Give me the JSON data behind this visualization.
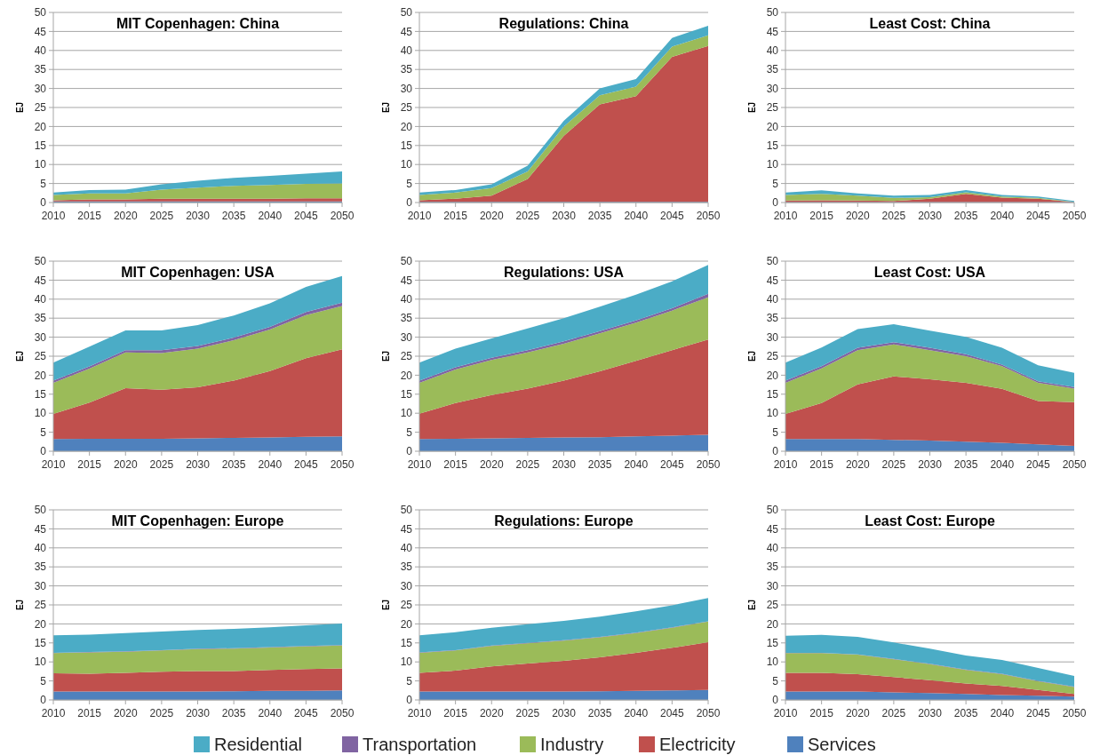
{
  "chart_data": [
    {
      "type": "area",
      "stacked": true,
      "title": "MIT Copenhagen: China",
      "ylabel": "EJ",
      "x": [
        2010,
        2015,
        2020,
        2025,
        2030,
        2035,
        2040,
        2045,
        2050
      ],
      "xlim": [
        2010,
        2050
      ],
      "xticks": [
        2010,
        2015,
        2020,
        2025,
        2030,
        2035,
        2040,
        2045,
        2050
      ],
      "ylim": [
        0,
        50
      ],
      "yticks": [
        0,
        5,
        10,
        15,
        20,
        25,
        30,
        35,
        40,
        45,
        50
      ],
      "grid": "y",
      "series": [
        {
          "color": "#4f81bd",
          "values": [
            0.3,
            0.3,
            0.3,
            0.3,
            0.3,
            0.3,
            0.3,
            0.3,
            0.3
          ]
        },
        {
          "color": "#c0504d",
          "values": [
            0.3,
            0.5,
            0.5,
            0.7,
            0.7,
            0.7,
            0.7,
            0.8,
            0.8
          ]
        },
        {
          "color": "#9bbb59",
          "values": [
            1.4,
            1.6,
            1.6,
            2.4,
            2.9,
            3.4,
            3.6,
            3.8,
            3.9
          ]
        },
        {
          "color": "#4bacc6",
          "values": [
            0.6,
            0.9,
            1.0,
            1.4,
            1.8,
            2.1,
            2.4,
            2.7,
            3.2
          ]
        }
      ]
    },
    {
      "type": "area",
      "stacked": true,
      "title": "Regulations: China",
      "ylabel": "EJ",
      "x": [
        2010,
        2015,
        2020,
        2025,
        2030,
        2035,
        2040,
        2045,
        2050
      ],
      "xlim": [
        2010,
        2050
      ],
      "xticks": [
        2010,
        2015,
        2020,
        2025,
        2030,
        2035,
        2040,
        2045,
        2050
      ],
      "ylim": [
        0,
        50
      ],
      "yticks": [
        0,
        5,
        10,
        15,
        20,
        25,
        30,
        35,
        40,
        45,
        50
      ],
      "grid": "y",
      "series": [
        {
          "color": "#4f81bd",
          "values": [
            0.2,
            0.2,
            0.2,
            0.2,
            0.2,
            0.2,
            0.2,
            0.2,
            0.2
          ]
        },
        {
          "color": "#c0504d",
          "values": [
            0.4,
            0.8,
            1.6,
            6.0,
            17.3,
            25.6,
            27.8,
            38.1,
            41.0
          ]
        },
        {
          "color": "#9bbb59",
          "values": [
            1.4,
            1.6,
            2.0,
            2.0,
            2.5,
            2.4,
            2.5,
            2.7,
            2.8
          ]
        },
        {
          "color": "#4bacc6",
          "values": [
            0.6,
            0.7,
            1.0,
            1.5,
            1.5,
            1.8,
            2.0,
            2.3,
            2.5
          ]
        }
      ]
    },
    {
      "type": "area",
      "stacked": true,
      "title": "Least Cost: China",
      "ylabel": "EJ",
      "x": [
        2010,
        2015,
        2020,
        2025,
        2030,
        2035,
        2040,
        2045,
        2050
      ],
      "xlim": [
        2010,
        2050
      ],
      "xticks": [
        2010,
        2015,
        2020,
        2025,
        2030,
        2035,
        2040,
        2045,
        2050
      ],
      "ylim": [
        0,
        50
      ],
      "yticks": [
        0,
        5,
        10,
        15,
        20,
        25,
        30,
        35,
        40,
        45,
        50
      ],
      "grid": "y",
      "series": [
        {
          "color": "#4f81bd",
          "values": [
            0.1,
            0.1,
            0.1,
            0.1,
            0.1,
            0.1,
            0.1,
            0.1,
            0.1
          ]
        },
        {
          "color": "#c0504d",
          "values": [
            0.4,
            0.5,
            0.4,
            0.3,
            0.9,
            2.2,
            1.2,
            0.9,
            0
          ]
        },
        {
          "color": "#9bbb59",
          "values": [
            1.5,
            1.7,
            1.3,
            0.8,
            0.4,
            0.4,
            0.3,
            0.2,
            0.1
          ]
        },
        {
          "color": "#4bacc6",
          "values": [
            0.6,
            0.9,
            0.6,
            0.6,
            0.6,
            0.6,
            0.4,
            0.4,
            0.2
          ]
        }
      ]
    },
    {
      "type": "area",
      "stacked": true,
      "title": "MIT Copenhagen: USA",
      "ylabel": "EJ",
      "x": [
        2010,
        2015,
        2020,
        2025,
        2030,
        2035,
        2040,
        2045,
        2050
      ],
      "xlim": [
        2010,
        2050
      ],
      "xticks": [
        2010,
        2015,
        2020,
        2025,
        2030,
        2035,
        2040,
        2045,
        2050
      ],
      "ylim": [
        0,
        50
      ],
      "yticks": [
        0,
        5,
        10,
        15,
        20,
        25,
        30,
        35,
        40,
        45,
        50
      ],
      "grid": "y",
      "series": [
        {
          "color": "#4f81bd",
          "values": [
            3.2,
            3.3,
            3.3,
            3.3,
            3.4,
            3.5,
            3.6,
            3.8,
            3.9
          ]
        },
        {
          "color": "#c0504d",
          "values": [
            6.6,
            9.5,
            13.3,
            12.9,
            13.4,
            15.1,
            17.5,
            20.7,
            22.9
          ]
        },
        {
          "color": "#9bbb59",
          "values": [
            8.2,
            8.9,
            9.4,
            9.6,
            10.2,
            10.6,
            10.9,
            11.3,
            11.4
          ]
        },
        {
          "color": "#8064a2",
          "values": [
            0.6,
            0.6,
            0.6,
            0.8,
            0.7,
            0.7,
            0.7,
            0.8,
            0.9
          ]
        },
        {
          "color": "#4bacc6",
          "values": [
            4.7,
            5.2,
            5.2,
            5.2,
            5.5,
            5.8,
            6.2,
            6.6,
            7.0
          ]
        }
      ]
    },
    {
      "type": "area",
      "stacked": true,
      "title": "Regulations: USA",
      "ylabel": "EJ",
      "x": [
        2010,
        2015,
        2020,
        2025,
        2030,
        2035,
        2040,
        2045,
        2050
      ],
      "xlim": [
        2010,
        2050
      ],
      "xticks": [
        2010,
        2015,
        2020,
        2025,
        2030,
        2035,
        2040,
        2045,
        2050
      ],
      "ylim": [
        0,
        50
      ],
      "yticks": [
        0,
        5,
        10,
        15,
        20,
        25,
        30,
        35,
        40,
        45,
        50
      ],
      "grid": "y",
      "series": [
        {
          "color": "#4f81bd",
          "values": [
            3.2,
            3.3,
            3.4,
            3.5,
            3.6,
            3.7,
            3.9,
            4.1,
            4.3
          ]
        },
        {
          "color": "#c0504d",
          "values": [
            6.7,
            9.4,
            11.4,
            13.0,
            15.0,
            17.3,
            19.9,
            22.5,
            25.1
          ]
        },
        {
          "color": "#9bbb59",
          "values": [
            8.1,
            8.8,
            9.2,
            9.5,
            9.7,
            10.0,
            10.0,
            10.4,
            11.1
          ]
        },
        {
          "color": "#8064a2",
          "values": [
            0.6,
            0.6,
            0.6,
            0.6,
            0.6,
            0.6,
            0.6,
            0.6,
            0.9
          ]
        },
        {
          "color": "#4bacc6",
          "values": [
            4.7,
            4.9,
            5.1,
            5.7,
            6.1,
            6.4,
            6.8,
            7.1,
            7.6
          ]
        }
      ]
    },
    {
      "type": "area",
      "stacked": true,
      "title": "Least Cost: USA",
      "ylabel": "EJ",
      "x": [
        2010,
        2015,
        2020,
        2025,
        2030,
        2035,
        2040,
        2045,
        2050
      ],
      "xlim": [
        2010,
        2050
      ],
      "xticks": [
        2010,
        2015,
        2020,
        2025,
        2030,
        2035,
        2040,
        2045,
        2050
      ],
      "ylim": [
        0,
        50
      ],
      "yticks": [
        0,
        5,
        10,
        15,
        20,
        25,
        30,
        35,
        40,
        45,
        50
      ],
      "grid": "y",
      "series": [
        {
          "color": "#4f81bd",
          "values": [
            3.2,
            3.2,
            3.2,
            3.0,
            2.8,
            2.5,
            2.2,
            1.8,
            1.4
          ]
        },
        {
          "color": "#c0504d",
          "values": [
            6.6,
            9.5,
            14.4,
            16.7,
            16.1,
            15.5,
            14.2,
            11.4,
            11.5
          ]
        },
        {
          "color": "#9bbb59",
          "values": [
            8.2,
            9.1,
            9.0,
            8.4,
            7.7,
            7.0,
            6.0,
            4.8,
            3.6
          ]
        },
        {
          "color": "#8064a2",
          "values": [
            0.6,
            0.6,
            0.6,
            0.6,
            0.6,
            0.5,
            0.4,
            0.4,
            0.4
          ]
        },
        {
          "color": "#4bacc6",
          "values": [
            4.7,
            4.9,
            4.9,
            4.7,
            4.5,
            4.6,
            4.4,
            4.2,
            3.7
          ]
        }
      ]
    },
    {
      "type": "area",
      "stacked": true,
      "title": "MIT Copenhagen: Europe",
      "ylabel": "EJ",
      "x": [
        2010,
        2015,
        2020,
        2025,
        2030,
        2035,
        2040,
        2045,
        2050
      ],
      "xlim": [
        2010,
        2050
      ],
      "xticks": [
        2010,
        2015,
        2020,
        2025,
        2030,
        2035,
        2040,
        2045,
        2050
      ],
      "ylim": [
        0,
        50
      ],
      "yticks": [
        0,
        5,
        10,
        15,
        20,
        25,
        30,
        35,
        40,
        45,
        50
      ],
      "grid": "y",
      "series": [
        {
          "color": "#4f81bd",
          "values": [
            2.2,
            2.2,
            2.2,
            2.2,
            2.2,
            2.3,
            2.4,
            2.4,
            2.5
          ]
        },
        {
          "color": "#c0504d",
          "values": [
            4.8,
            4.7,
            4.9,
            5.2,
            5.4,
            5.3,
            5.5,
            5.7,
            5.8
          ]
        },
        {
          "color": "#9bbb59",
          "values": [
            5.3,
            5.6,
            5.6,
            5.6,
            5.8,
            5.9,
            5.9,
            6.0,
            6.0
          ]
        },
        {
          "color": "#8064a2",
          "values": [
            0.1,
            0.1,
            0.1,
            0.1,
            0.1,
            0.1,
            0.1,
            0.1,
            0.1
          ]
        },
        {
          "color": "#4bacc6",
          "values": [
            4.6,
            4.6,
            4.8,
            4.9,
            4.9,
            5.1,
            5.2,
            5.4,
            5.7
          ]
        }
      ]
    },
    {
      "type": "area",
      "stacked": true,
      "title": "Regulations: Europe",
      "ylabel": "EJ",
      "x": [
        2010,
        2015,
        2020,
        2025,
        2030,
        2035,
        2040,
        2045,
        2050
      ],
      "xlim": [
        2010,
        2050
      ],
      "xticks": [
        2010,
        2015,
        2020,
        2025,
        2030,
        2035,
        2040,
        2045,
        2050
      ],
      "ylim": [
        0,
        50
      ],
      "yticks": [
        0,
        5,
        10,
        15,
        20,
        25,
        30,
        35,
        40,
        45,
        50
      ],
      "grid": "y",
      "series": [
        {
          "color": "#4f81bd",
          "values": [
            2.2,
            2.2,
            2.2,
            2.2,
            2.2,
            2.3,
            2.4,
            2.5,
            2.6
          ]
        },
        {
          "color": "#c0504d",
          "values": [
            4.9,
            5.5,
            6.6,
            7.4,
            8.1,
            8.9,
            10.0,
            11.2,
            12.6
          ]
        },
        {
          "color": "#9bbb59",
          "values": [
            5.3,
            5.3,
            5.4,
            5.3,
            5.3,
            5.3,
            5.2,
            5.3,
            5.4
          ]
        },
        {
          "color": "#8064a2",
          "values": [
            0.1,
            0.1,
            0.1,
            0.1,
            0.1,
            0.1,
            0.1,
            0.1,
            0.1
          ]
        },
        {
          "color": "#4bacc6",
          "values": [
            4.5,
            4.7,
            4.7,
            4.9,
            5.1,
            5.3,
            5.6,
            5.8,
            6.1
          ]
        }
      ]
    },
    {
      "type": "area",
      "stacked": true,
      "title": "Least Cost: Europe",
      "ylabel": "EJ",
      "x": [
        2010,
        2015,
        2020,
        2025,
        2030,
        2035,
        2040,
        2045,
        2050
      ],
      "xlim": [
        2010,
        2050
      ],
      "xticks": [
        2010,
        2015,
        2020,
        2025,
        2030,
        2035,
        2040,
        2045,
        2050
      ],
      "ylim": [
        0,
        50
      ],
      "yticks": [
        0,
        5,
        10,
        15,
        20,
        25,
        30,
        35,
        40,
        45,
        50
      ],
      "grid": "y",
      "legend": "bottom",
      "series": [
        {
          "name": "Services",
          "color": "#4f81bd",
          "values": [
            2.2,
            2.2,
            2.2,
            2.0,
            1.8,
            1.6,
            1.3,
            1.1,
            0.9
          ]
        },
        {
          "name": "Electricity",
          "color": "#c0504d",
          "values": [
            4.9,
            4.9,
            4.6,
            4.0,
            3.4,
            2.7,
            2.4,
            1.5,
            0.7
          ]
        },
        {
          "name": "Industry",
          "color": "#9bbb59",
          "values": [
            5.2,
            5.2,
            5.1,
            4.7,
            4.2,
            3.6,
            3.1,
            2.3,
            1.8
          ]
        },
        {
          "name": "Transportation",
          "color": "#8064a2",
          "values": [
            0.1,
            0.1,
            0.1,
            0.1,
            0.1,
            0.1,
            0.1,
            0.1,
            0.1
          ]
        },
        {
          "name": "Residential",
          "color": "#4bacc6",
          "values": [
            4.5,
            4.7,
            4.6,
            4.3,
            4.0,
            3.7,
            3.6,
            3.4,
            2.8
          ]
        }
      ]
    }
  ]
}
